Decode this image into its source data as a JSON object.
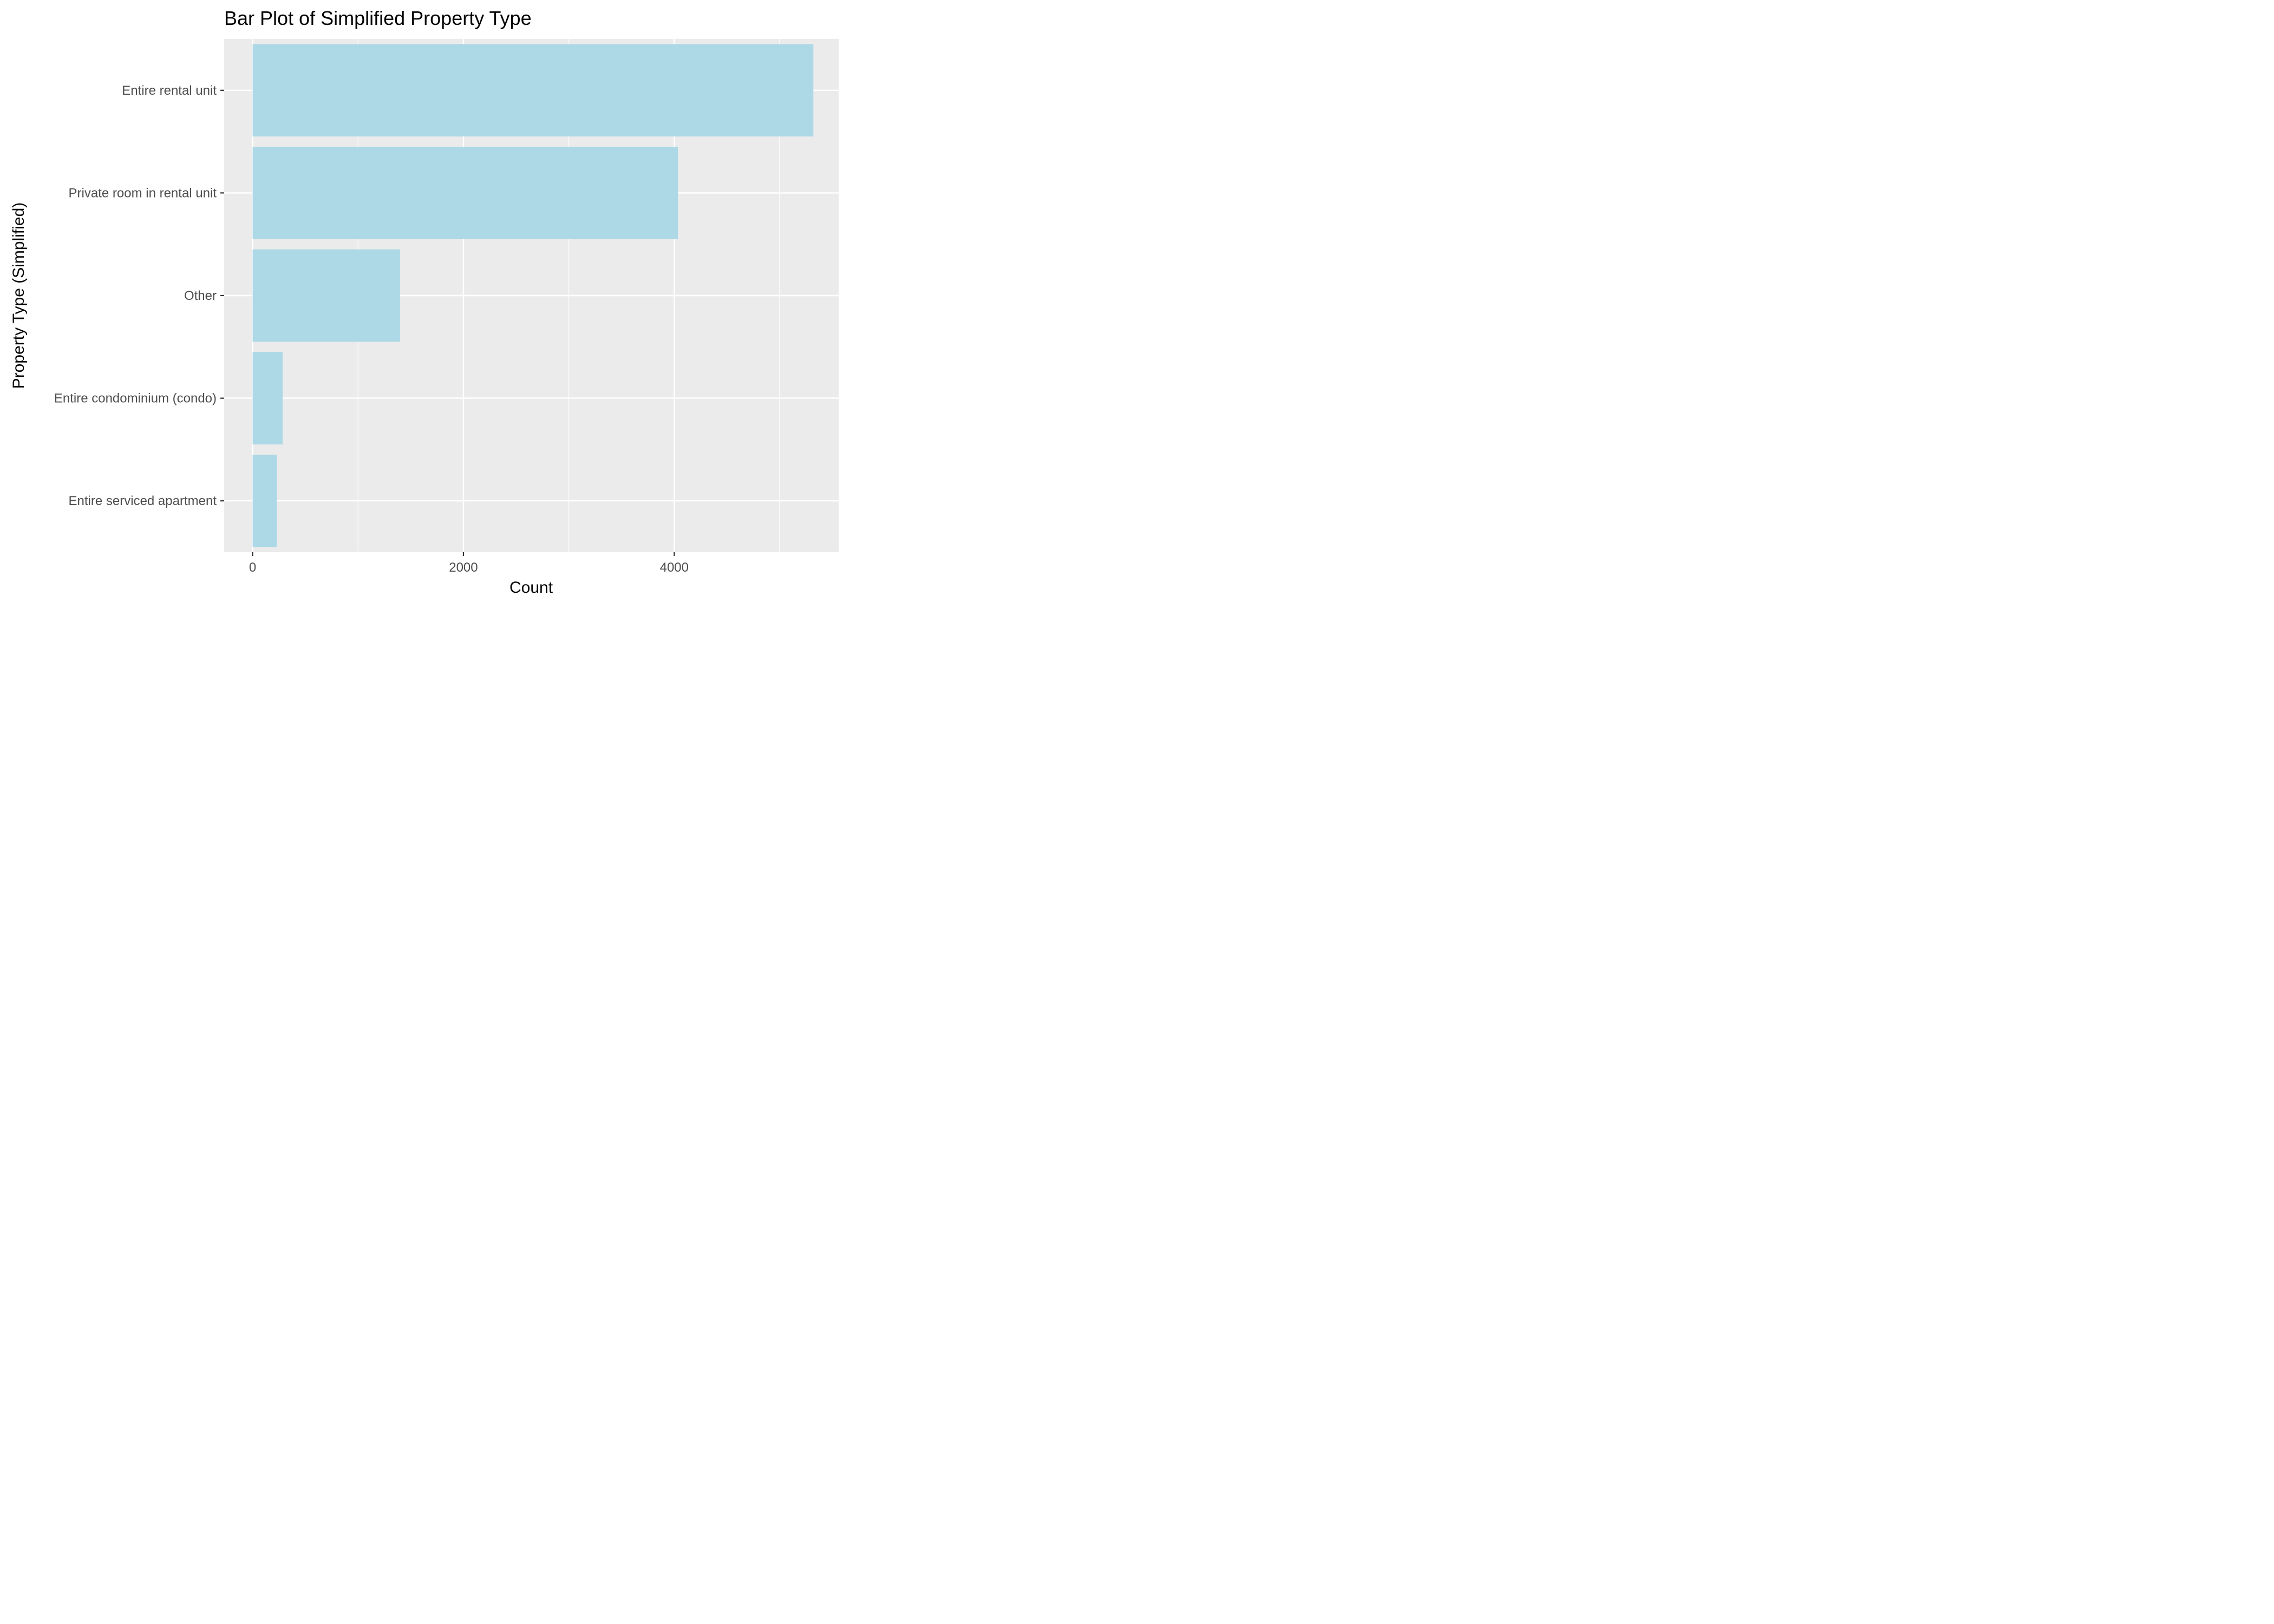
{
  "chart_data": {
    "type": "bar",
    "orientation": "horizontal",
    "title": "Bar Plot of Simplified Property Type",
    "xlabel": "Count",
    "ylabel": "Property Type (Simplified)",
    "categories": [
      "Entire rental unit",
      "Private room in rental unit",
      "Other",
      "Entire condominium (condo)",
      "Entire serviced apartment"
    ],
    "values": [
      5320,
      4035,
      1400,
      285,
      230
    ],
    "xlim": [
      -270,
      5560
    ],
    "x_ticks": [
      0,
      2000,
      4000
    ],
    "x_tick_labels": [
      "0",
      "2000",
      "4000"
    ],
    "x_minor_ticks": [
      1000,
      3000,
      5000
    ],
    "grid": true,
    "legend": "none",
    "colors": {
      "bar": "#add8e6",
      "panel_background": "#ebebeb",
      "grid_line": "#ffffff",
      "tick_text": "#4d4d4d",
      "tick_mark": "#333333"
    }
  }
}
